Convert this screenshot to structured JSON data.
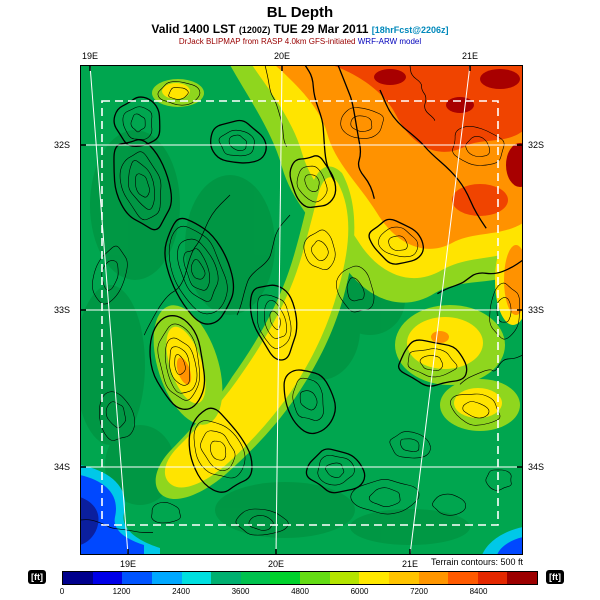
{
  "header": {
    "title": "BL Depth",
    "valid_prefix": "Valid 1400 LST",
    "valid_ztime": "(1200Z)",
    "valid_date": "TUE 29 Mar 2011",
    "valid_fcst": "[18hrFcst@2206z]",
    "model_part1": "DrJack BLIPMAP from RASP 4.0km GFS-initiated",
    "model_part2": "WRF-ARW model"
  },
  "map": {
    "lon_ticks": [
      "19E",
      "20E",
      "21E"
    ],
    "lat_ticks": [
      "32S",
      "33S",
      "34S"
    ]
  },
  "footer": {
    "terrain_note": "Terrain contours: 500 ft",
    "unit_left": "[ft]",
    "unit_right": "[ft]"
  },
  "chart_data": {
    "type": "heatmap",
    "title": "BL Depth",
    "valid_time": "Valid 1400 LST (1200Z) TUE 29 Mar 2011",
    "forecast_tag": "18hrFcst@2206z",
    "model": "DrJack BLIPMAP from RASP 4.0km GFS-initiated WRF-ARW model",
    "units": "ft",
    "x_ticks": [
      "19E",
      "20E",
      "21E"
    ],
    "y_ticks": [
      "32S",
      "33S",
      "34S"
    ],
    "terrain_contour_interval": "500 ft",
    "colorbar": {
      "tick_values": [
        0,
        1200,
        2400,
        3600,
        4800,
        6000,
        7200,
        8400
      ],
      "segment_step_ft": 600,
      "segment_colors": [
        "#00008c",
        "#0000e8",
        "#0054ff",
        "#00a8ff",
        "#00e0e0",
        "#00b070",
        "#00c24e",
        "#00d22c",
        "#64dc14",
        "#b4e400",
        "#ffe800",
        "#ffc400",
        "#ff9600",
        "#ff5a00",
        "#e42800",
        "#9c0000"
      ]
    },
    "field_summary": {
      "high_region": "northeast quadrant orange/red, about 6000-8400+ ft",
      "low_region": "southwest coastal corner blue, about 0-1200 ft",
      "typical": "green 3000-4200 ft with yellow ridges/bands 4800-6000 ft"
    }
  }
}
